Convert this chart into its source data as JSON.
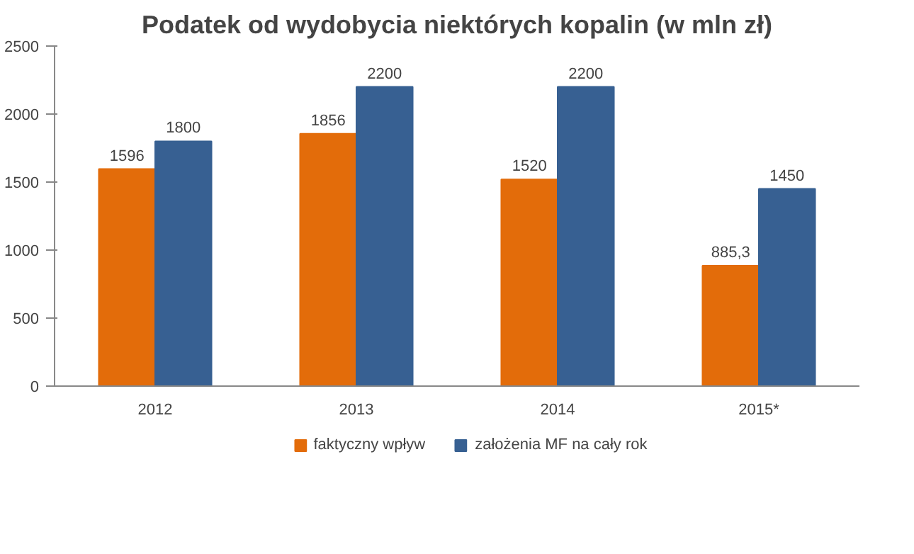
{
  "chart_data": {
    "type": "bar",
    "title": "Podatek od wydobycia niektórych kopalin (w mln zł)",
    "categories": [
      "2012",
      "2013",
      "2014",
      "2015*"
    ],
    "series": [
      {
        "name": "faktyczny wpływ",
        "color": "#e36c0a",
        "values": [
          1596,
          1856,
          1520,
          885.3
        ],
        "value_labels": [
          "1596",
          "1856",
          "1520",
          "885,3"
        ]
      },
      {
        "name": "założenia MF na cały rok",
        "color": "#376092",
        "values": [
          1800,
          2200,
          2200,
          1450
        ],
        "value_labels": [
          "1800",
          "2200",
          "2200",
          "1450"
        ]
      }
    ],
    "ylim": [
      0,
      2500
    ],
    "yticks": [
      0,
      500,
      1000,
      1500,
      2000,
      2500
    ],
    "grid": false,
    "legend": "bottom"
  }
}
